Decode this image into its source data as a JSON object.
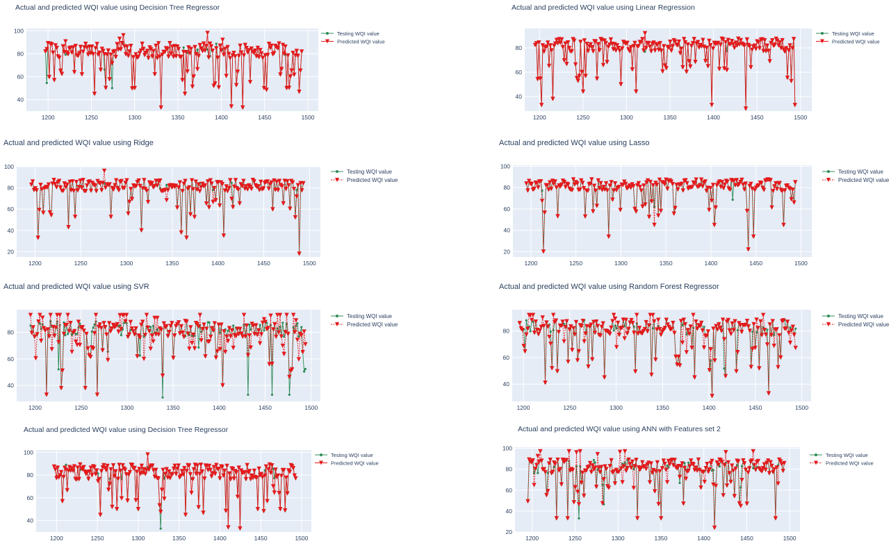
{
  "colors": {
    "plot_bg": "#e5ecf6",
    "grid": "#ffffff",
    "testing": "#2e8b57",
    "predicted": "#e41a1c",
    "text": "#2a3f5f"
  },
  "legend": {
    "testing": "Testing WQI value",
    "predicted": "Predicted WQI value"
  },
  "chart_data": [
    {
      "type": "line",
      "title": "Actual and predicted WQI value using Decision Tree Regressor",
      "xlim": [
        1175,
        1512
      ],
      "ylim": [
        30,
        102
      ],
      "xticks": [
        1200,
        1250,
        1300,
        1350,
        1400,
        1450,
        1500
      ],
      "yticks": [
        40,
        60,
        80,
        100
      ],
      "x_start": 1197,
      "x_end": 1494,
      "predicted_dashed": false,
      "series": [
        {
          "name": "Testing WQI value",
          "shape": "circle",
          "mean": 80,
          "spread": 12,
          "deep_dips": [
            1207,
            1254,
            1274,
            1300,
            1330,
            1358,
            1411,
            1425,
            1449,
            1476
          ],
          "deep_values": [
            57,
            45,
            50,
            50,
            33,
            45,
            34,
            33,
            50,
            50
          ]
        },
        {
          "name": "Predicted WQI value",
          "shape": "triangle-down",
          "follows": "Testing WQI value",
          "mismatch": 0.08
        }
      ]
    },
    {
      "type": "line",
      "title": "Actual and predicted WQI value using Linear Regression",
      "xlim": [
        1183,
        1513
      ],
      "ylim": [
        28,
        96
      ],
      "xticks": [
        1200,
        1250,
        1300,
        1350,
        1400,
        1450,
        1500
      ],
      "yticks": [
        40,
        60,
        80
      ],
      "x_start": 1195,
      "x_end": 1494,
      "predicted_dashed": false,
      "series": [
        {
          "name": "Testing WQI value",
          "shape": "circle",
          "mean": 80,
          "spread": 10,
          "deep_dips": [
            1202,
            1216,
            1250,
            1294,
            1311,
            1398,
            1437,
            1494
          ],
          "deep_values": [
            33,
            38,
            44,
            50,
            44,
            33,
            30,
            33
          ]
        },
        {
          "name": "Predicted WQI value",
          "shape": "triangle-down",
          "follows": "Testing WQI value",
          "mismatch": 0.02
        }
      ]
    },
    {
      "type": "line",
      "title": "Actual and predicted WQI value using Ridge",
      "xlim": [
        1180,
        1512
      ],
      "ylim": [
        15,
        100
      ],
      "xticks": [
        1200,
        1250,
        1300,
        1350,
        1400,
        1450,
        1500
      ],
      "yticks": [
        20,
        40,
        60,
        80,
        100
      ],
      "x_start": 1196,
      "x_end": 1494,
      "predicted_dashed": true,
      "series": [
        {
          "name": "Testing WQI value",
          "shape": "circle",
          "mean": 80,
          "spread": 10,
          "deep_dips": [
            1204,
            1237,
            1316,
            1360,
            1366,
            1406,
            1489
          ],
          "deep_values": [
            33,
            43,
            40,
            38,
            33,
            35,
            18
          ]
        },
        {
          "name": "Predicted WQI value",
          "shape": "triangle-down",
          "follows": "Testing WQI value",
          "mismatch": 0.03
        }
      ]
    },
    {
      "type": "line",
      "title": "Actual and predicted WQI value using Lasso",
      "xlim": [
        1180,
        1512
      ],
      "ylim": [
        15,
        101
      ],
      "xticks": [
        1200,
        1250,
        1300,
        1350,
        1400,
        1450,
        1500
      ],
      "yticks": [
        20,
        40,
        60,
        80,
        100
      ],
      "x_start": 1195,
      "x_end": 1494,
      "predicted_dashed": true,
      "series": [
        {
          "name": "Testing WQI value",
          "shape": "circle",
          "mean": 80,
          "spread": 10,
          "deep_dips": [
            1214,
            1287,
            1404,
            1442,
            1448,
            1480
          ],
          "deep_values": [
            20,
            34,
            45,
            22,
            34,
            45
          ]
        },
        {
          "name": "Predicted WQI value",
          "shape": "triangle-down",
          "follows": "Testing WQI value",
          "mismatch": 0.03
        }
      ]
    },
    {
      "type": "line",
      "title": "Actual and predicted WQI value using SVR",
      "xlim": [
        1180,
        1510
      ],
      "ylim": [
        28,
        97
      ],
      "xticks": [
        1200,
        1250,
        1300,
        1350,
        1400,
        1450,
        1500
      ],
      "yticks": [
        40,
        60,
        80
      ],
      "x_start": 1195,
      "x_end": 1494,
      "predicted_dashed": true,
      "series": [
        {
          "name": "Testing WQI value",
          "shape": "circle",
          "mean": 80,
          "spread": 11,
          "deep_dips": [
            1212,
            1228,
            1254,
            1268,
            1339,
            1404,
            1432,
            1457,
            1476
          ],
          "deep_values": [
            33,
            38,
            38,
            33,
            31,
            40,
            33,
            33,
            33
          ]
        },
        {
          "name": "Predicted WQI value",
          "shape": "triangle-down",
          "follows": "Testing WQI value",
          "mismatch": 0.35
        }
      ]
    },
    {
      "type": "line",
      "title": "Actual and predicted WQI value using Random Forest Regressor",
      "xlim": [
        1188,
        1510
      ],
      "ylim": [
        27,
        96
      ],
      "xticks": [
        1200,
        1250,
        1300,
        1350,
        1400,
        1450,
        1500
      ],
      "yticks": [
        40,
        60,
        80
      ],
      "x_start": 1196,
      "x_end": 1494,
      "predicted_dashed": true,
      "series": [
        {
          "name": "Testing WQI value",
          "shape": "circle",
          "mean": 80,
          "spread": 11,
          "deep_dips": [
            1223,
            1287,
            1338,
            1384,
            1403,
            1418,
            1464
          ],
          "deep_values": [
            41,
            45,
            47,
            45,
            31,
            46,
            33
          ]
        },
        {
          "name": "Predicted WQI value",
          "shape": "triangle-down",
          "follows": "Testing WQI value",
          "mismatch": 0.15
        }
      ]
    },
    {
      "type": "line",
      "title": "Actual and predicted WQI value using Decision Tree Regressor",
      "xlim": [
        1175,
        1512
      ],
      "ylim": [
        30,
        102
      ],
      "xticks": [
        1200,
        1250,
        1300,
        1350,
        1400,
        1450,
        1500
      ],
      "yticks": [
        40,
        60,
        80,
        100
      ],
      "x_start": 1197,
      "x_end": 1494,
      "predicted_dashed": false,
      "series": [
        {
          "name": "Testing WQI value",
          "shape": "circle",
          "mean": 80,
          "spread": 12,
          "deep_dips": [
            1207,
            1254,
            1274,
            1300,
            1328,
            1358,
            1410,
            1425,
            1447,
            1474
          ],
          "deep_values": [
            57,
            45,
            50,
            50,
            33,
            45,
            34,
            33,
            50,
            50
          ]
        },
        {
          "name": "Predicted WQI value",
          "shape": "triangle-down",
          "follows": "Testing WQI value",
          "mismatch": 0.08
        }
      ]
    },
    {
      "type": "line",
      "title": "Actual and predicted WQI value using ANN with Features set 2",
      "xlim": [
        1180,
        1512
      ],
      "ylim": [
        20,
        101
      ],
      "xticks": [
        1200,
        1250,
        1300,
        1350,
        1400,
        1450,
        1500
      ],
      "yticks": [
        20,
        40,
        60,
        80,
        100
      ],
      "x_start": 1195,
      "x_end": 1494,
      "predicted_dashed": true,
      "series": [
        {
          "name": "Testing WQI value",
          "shape": "circle",
          "mean": 80,
          "spread": 12,
          "deep_dips": [
            1229,
            1242,
            1255,
            1322,
            1350,
            1413,
            1484
          ],
          "deep_values": [
            33,
            33,
            33,
            33,
            33,
            24,
            33
          ]
        },
        {
          "name": "Predicted WQI value",
          "shape": "triangle-down",
          "follows": "Testing WQI value",
          "mismatch": 0.12
        }
      ]
    }
  ]
}
